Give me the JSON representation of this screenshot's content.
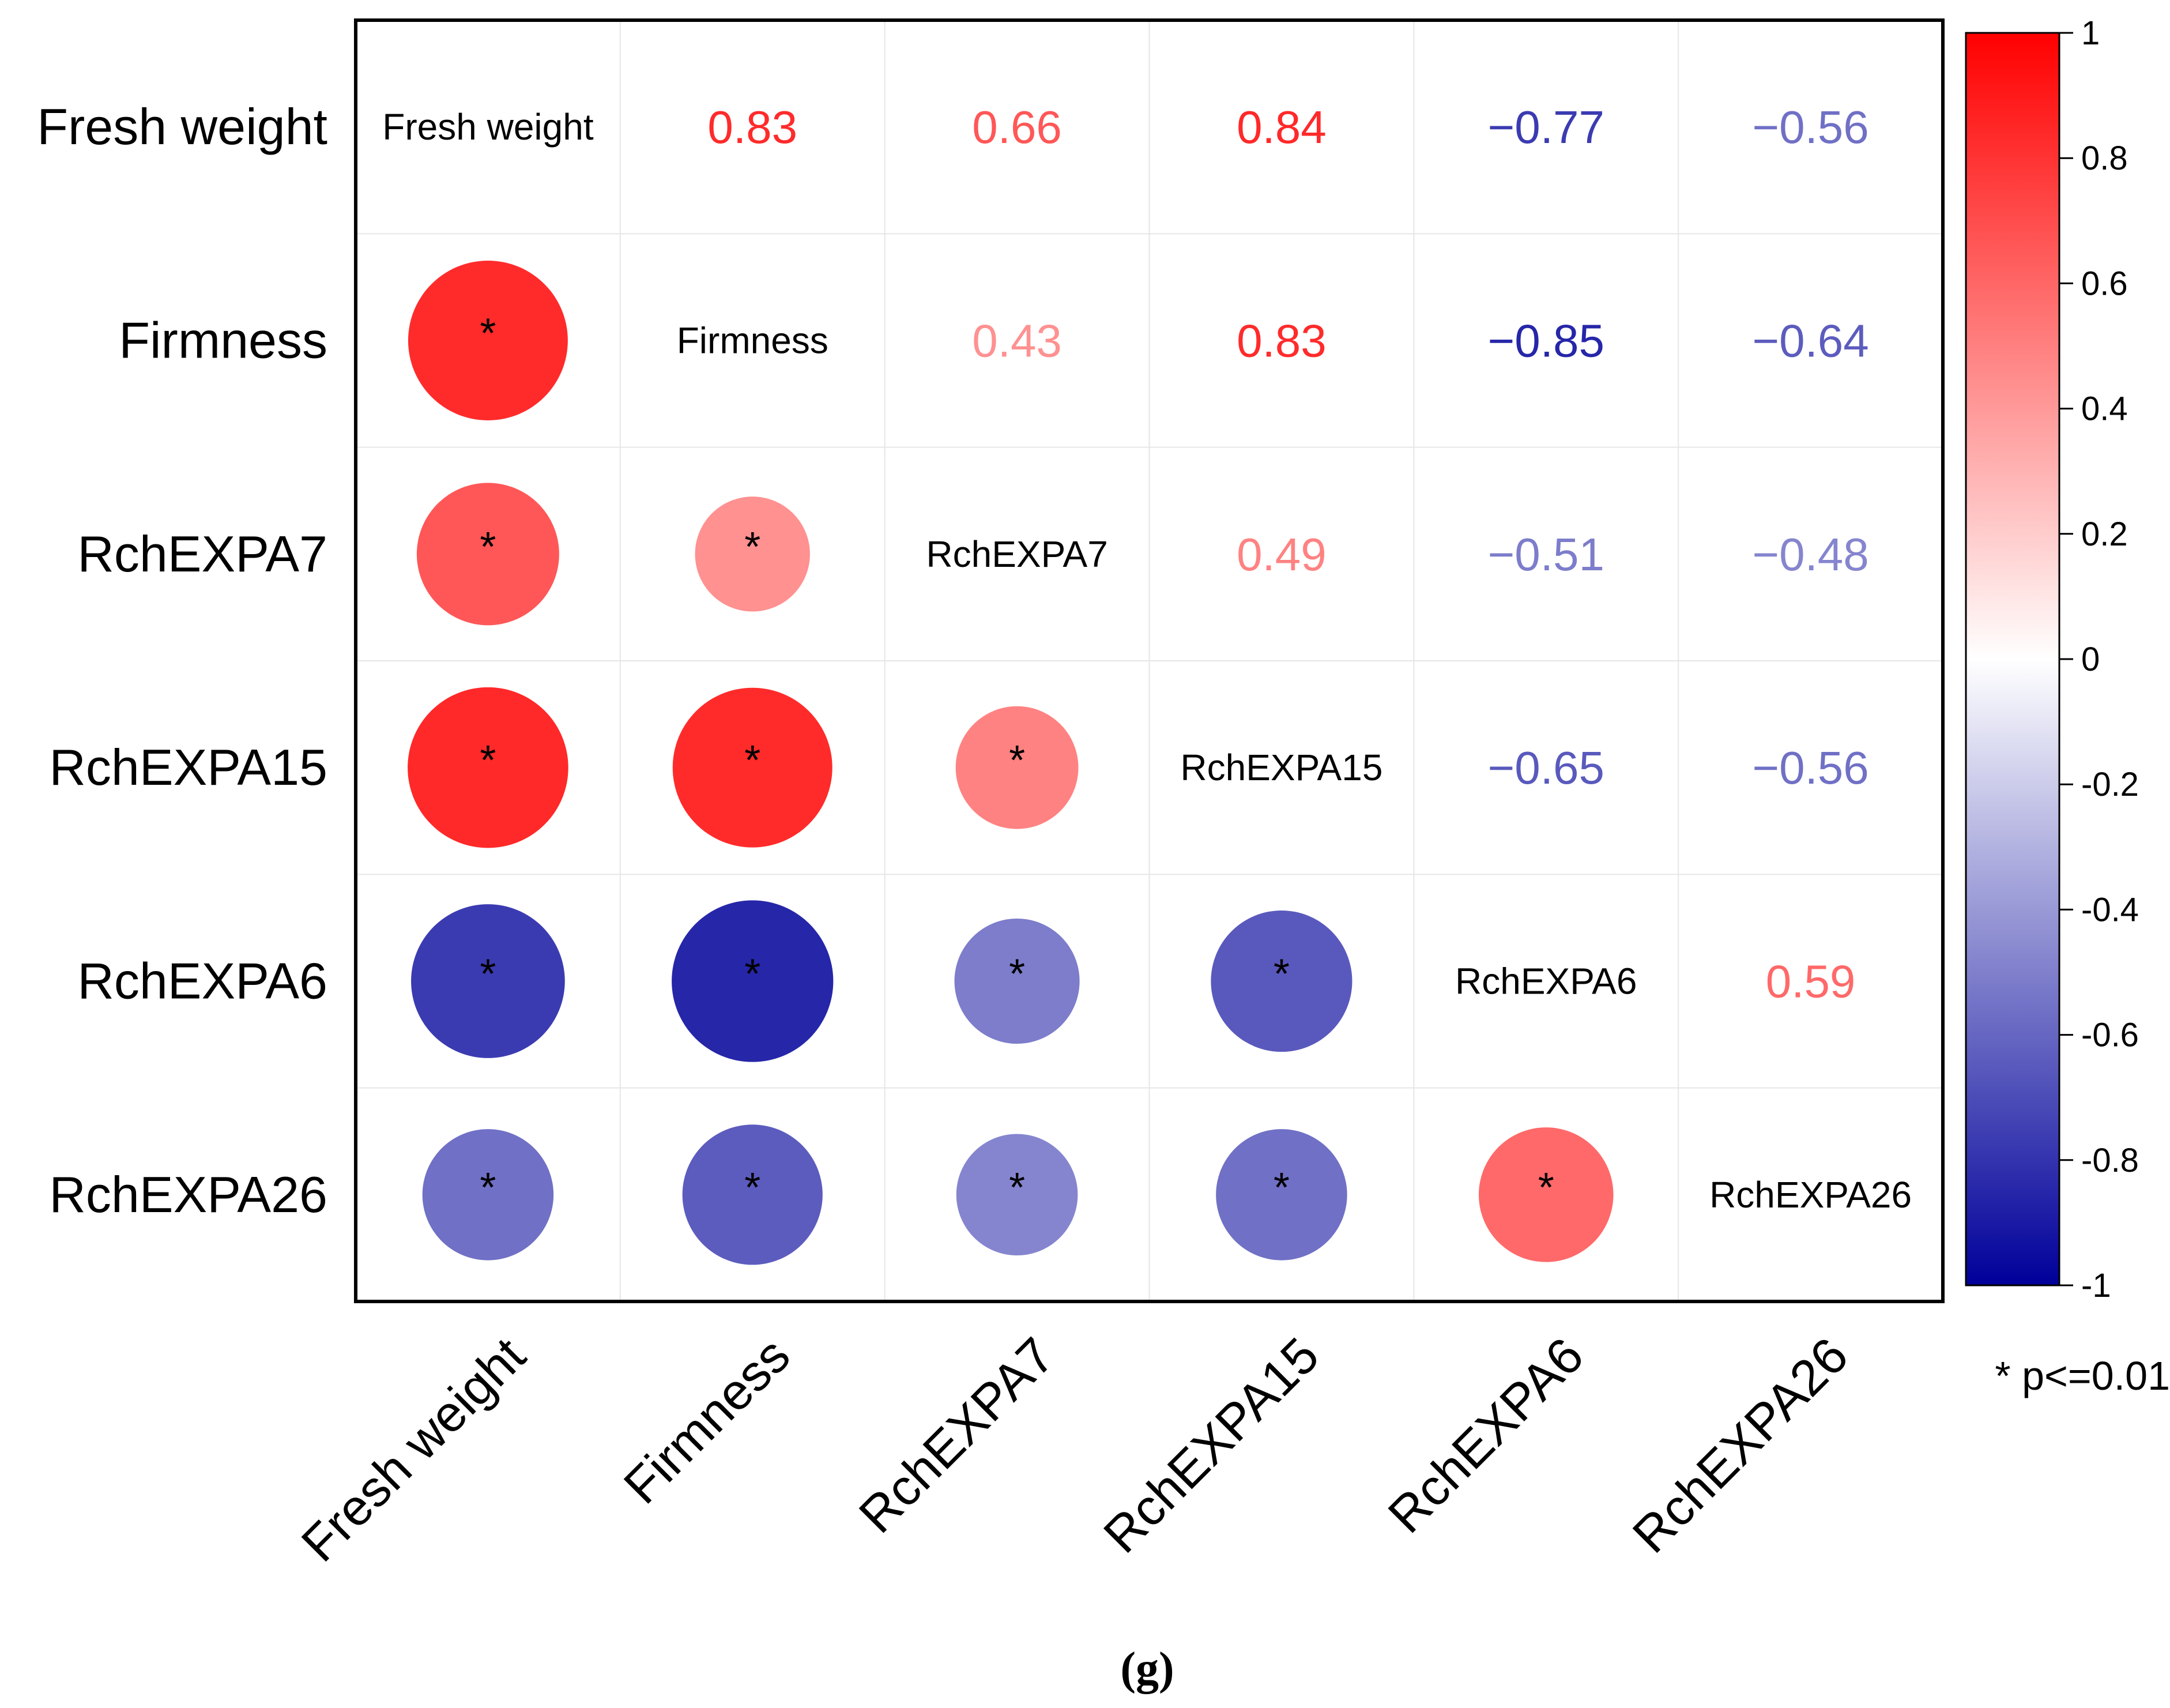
{
  "chart_data": {
    "type": "heatmap",
    "subtype": "correlation-matrix",
    "variables": [
      "Fresh weight",
      "Firmness",
      "RchEXPA7",
      "RchEXPA15",
      "RchEXPA6",
      "RchEXPA26"
    ],
    "matrix": [
      [
        1,
        0.83,
        0.66,
        0.84,
        -0.77,
        -0.56
      ],
      [
        0.83,
        1,
        0.43,
        0.83,
        -0.85,
        -0.64
      ],
      [
        0.66,
        0.43,
        1,
        0.49,
        -0.51,
        -0.48
      ],
      [
        0.84,
        0.83,
        0.49,
        1,
        -0.65,
        -0.56
      ],
      [
        -0.77,
        -0.85,
        -0.51,
        -0.65,
        1,
        0.59
      ],
      [
        -0.56,
        -0.64,
        -0.48,
        -0.56,
        0.59,
        1
      ]
    ],
    "upper_labels": [
      [
        "",
        "0.83",
        "0.66",
        "0.84",
        "−0.77",
        "−0.56"
      ],
      [
        "",
        "",
        "0.43",
        "0.83",
        "−0.85",
        "−0.64"
      ],
      [
        "",
        "",
        "",
        "0.49",
        "−0.51",
        "−0.48"
      ],
      [
        "",
        "",
        "",
        "",
        "−0.65",
        "−0.56"
      ],
      [
        "",
        "",
        "",
        "",
        "",
        "0.59"
      ],
      [
        "",
        "",
        "",
        "",
        "",
        ""
      ]
    ],
    "lower_display": "circle",
    "upper_display": "number",
    "diagonal_display": "name",
    "significance_marker": "*",
    "significance_note": "* p<=0.01",
    "colorbar": {
      "range": [
        -1,
        1
      ],
      "ticks": [
        "1",
        "0.8",
        "0.6",
        "0.4",
        "0.2",
        "0",
        "-0.2",
        "-0.4",
        "-0.6",
        "-0.8",
        "-1"
      ],
      "tick_values": [
        1,
        0.8,
        0.6,
        0.4,
        0.2,
        0,
        -0.2,
        -0.4,
        -0.6,
        -0.8,
        -1
      ],
      "colors": {
        "low": "#00009a",
        "mid": "#ffffff",
        "high": "#ff0000"
      }
    },
    "caption": "(g)"
  }
}
